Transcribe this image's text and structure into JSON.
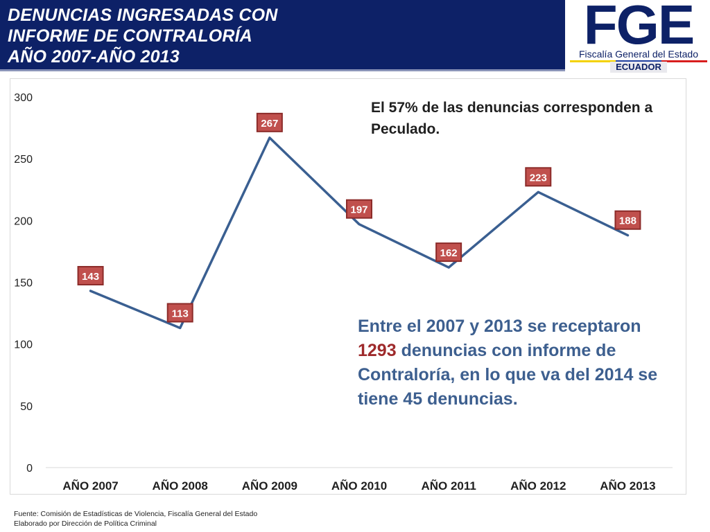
{
  "header": {
    "title_lines": [
      "DENUNCIAS INGRESADAS CON",
      "INFORME DE CONTRALORÍA",
      "AÑO 2007-AÑO 2013"
    ]
  },
  "logo": {
    "letters": "FGE",
    "subtitle": "Fiscalía General del Estado",
    "country": "ECUADOR",
    "flag_colors": [
      "#f4d200",
      "#1f3fa0",
      "#d81e1e"
    ]
  },
  "chart_data": {
    "type": "line",
    "title": "",
    "xlabel": "",
    "ylabel": "",
    "categories": [
      "AÑO 2007",
      "AÑO 2008",
      "AÑO 2009",
      "AÑO 2010",
      "AÑO 2011",
      "AÑO 2012",
      "AÑO 2013"
    ],
    "series": [
      {
        "values": [
          143,
          113,
          267,
          197,
          162,
          223,
          188
        ]
      }
    ],
    "ylim": [
      0,
      300
    ],
    "yticks": [
      0,
      50,
      100,
      150,
      200,
      250,
      300
    ],
    "grid": false,
    "legend": "none",
    "line_color": "#3a5f91",
    "label_fill": "#c0504d",
    "label_border": "#8c2b29"
  },
  "notes": {
    "top": "El 57% de las denuncias corresponden a Peculado.",
    "main_before": "Entre el 2007 y 2013 se receptaron ",
    "main_highlight": "1293",
    "main_after": " denuncias con informe de Contraloría, en lo que va del 2014 se tiene 45 denuncias."
  },
  "footer": {
    "source": "Fuente: Comisión de Estadísticas de Violencia, Fiscalía General del Estado",
    "prepared": "Elaborado por Dirección de Política Criminal"
  }
}
